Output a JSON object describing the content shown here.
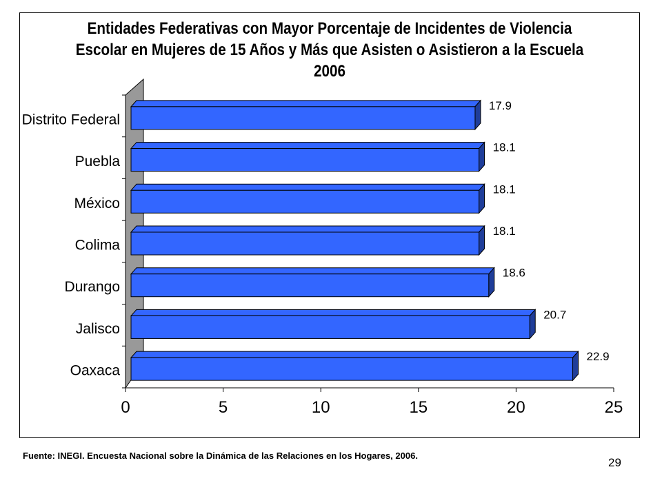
{
  "chart_data": {
    "type": "bar",
    "orientation": "horizontal",
    "title_lines": [
      "Entidades Federativas con Mayor Porcentaje de Incidentes de Violencia",
      "Escolar en Mujeres de 15 Años y Más que Asisten o Asistieron a la Escuela",
      "2006"
    ],
    "categories": [
      "Distrito Federal",
      "Puebla",
      "México",
      "Colima",
      "Durango",
      "Jalisco",
      "Oaxaca"
    ],
    "values": [
      17.9,
      18.1,
      18.1,
      18.1,
      18.6,
      20.7,
      22.9
    ],
    "value_labels": [
      "17.9",
      "18.1",
      "18.1",
      "18.1",
      "18.6",
      "20.7",
      "22.9"
    ],
    "xlim": [
      0,
      25
    ],
    "x_ticks": [
      0,
      5,
      10,
      15,
      20,
      25
    ],
    "x_tick_labels": [
      "0",
      "5",
      "10",
      "15",
      "20",
      "25"
    ],
    "bar_color": "#3366ff",
    "bar_side_color": "#1f3d99",
    "wall_color": "#999999",
    "grid": false,
    "legend": "none"
  },
  "footer": {
    "source": "Fuente: INEGI. Encuesta Nacional sobre la Dinámica de las Relaciones en los Hogares, 2006.",
    "page_number": "29"
  }
}
